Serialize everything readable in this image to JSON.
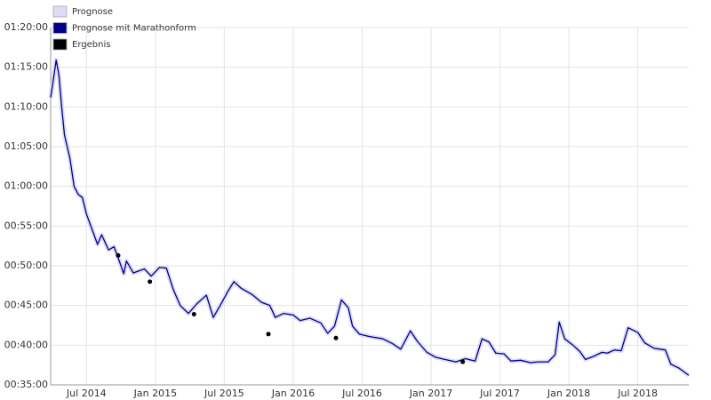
{
  "chart_data": {
    "type": "line",
    "x": [
      2014.24,
      2014.26,
      2014.28,
      2014.3,
      2014.32,
      2014.34,
      2014.38,
      2014.41,
      2014.44,
      2014.47,
      2014.5,
      2014.54,
      2014.58,
      2014.61,
      2014.66,
      2014.7,
      2014.74,
      2014.77,
      2014.79,
      2014.84,
      2014.92,
      2014.97,
      2015.03,
      2015.08,
      2015.13,
      2015.18,
      2015.24,
      2015.3,
      2015.37,
      2015.42,
      2015.47,
      2015.53,
      2015.57,
      2015.62,
      2015.7,
      2015.77,
      2015.83,
      2015.87,
      2015.93,
      2016.0,
      2016.05,
      2016.12,
      2016.2,
      2016.25,
      2016.3,
      2016.35,
      2016.4,
      2016.43,
      2016.48,
      2016.55,
      2016.65,
      2016.72,
      2016.78,
      2016.85,
      2016.9,
      2016.97,
      2017.03,
      2017.1,
      2017.18,
      2017.25,
      2017.32,
      2017.37,
      2017.42,
      2017.47,
      2017.53,
      2017.58,
      2017.65,
      2017.72,
      2017.78,
      2017.85,
      2017.9,
      2017.93,
      2017.97,
      2018.03,
      2018.08,
      2018.12,
      2018.18,
      2018.24,
      2018.28,
      2018.33,
      2018.38,
      2018.43,
      2018.5,
      2018.55,
      2018.62,
      2018.7,
      2018.74,
      2018.8,
      2018.87
    ],
    "series": [
      {
        "name": "Prognose",
        "type": "line",
        "color": "#dcdcf4",
        "values": [
          71.2,
          73.5,
          75.9,
          74.0,
          70.0,
          66.5,
          63.5,
          60.0,
          59.0,
          58.6,
          56.5,
          54.6,
          52.7,
          53.9,
          52.0,
          52.4,
          50.5,
          49.0,
          50.6,
          49.1,
          49.6,
          48.7,
          49.8,
          49.7,
          47.0,
          45.0,
          44.0,
          45.2,
          46.3,
          43.5,
          45.0,
          46.9,
          48.0,
          47.2,
          46.4,
          45.4,
          45.0,
          43.5,
          44.0,
          43.8,
          43.1,
          43.4,
          42.8,
          41.5,
          42.4,
          45.7,
          44.7,
          42.4,
          41.4,
          41.1,
          40.8,
          40.2,
          39.5,
          41.8,
          40.5,
          39.1,
          38.5,
          38.2,
          37.9,
          38.3,
          38.0,
          40.8,
          40.4,
          39.0,
          38.9,
          38.0,
          38.1,
          37.8,
          37.9,
          37.9,
          38.8,
          42.9,
          40.8,
          40.0,
          39.2,
          38.2,
          38.6,
          39.1,
          39.0,
          39.4,
          39.3,
          42.2,
          41.6,
          40.3,
          39.6,
          39.4,
          37.6,
          37.1,
          36.2
        ]
      },
      {
        "name": "Prognose mit Marathonform",
        "type": "line",
        "color": "#00008b",
        "values": [
          71.2,
          73.5,
          75.9,
          74.0,
          70.0,
          66.5,
          63.5,
          60.0,
          59.0,
          58.6,
          56.5,
          54.6,
          52.7,
          53.9,
          52.0,
          52.4,
          50.5,
          49.0,
          50.6,
          49.1,
          49.6,
          48.7,
          49.8,
          49.7,
          47.0,
          45.0,
          44.0,
          45.2,
          46.3,
          43.5,
          45.0,
          46.9,
          48.0,
          47.2,
          46.4,
          45.4,
          45.0,
          43.5,
          44.0,
          43.8,
          43.1,
          43.4,
          42.8,
          41.5,
          42.4,
          45.7,
          44.7,
          42.4,
          41.4,
          41.1,
          40.8,
          40.2,
          39.5,
          41.8,
          40.5,
          39.1,
          38.5,
          38.2,
          37.9,
          38.3,
          38.0,
          40.8,
          40.4,
          39.0,
          38.9,
          38.0,
          38.1,
          37.8,
          37.9,
          37.9,
          38.8,
          42.9,
          40.8,
          40.0,
          39.2,
          38.2,
          38.6,
          39.1,
          39.0,
          39.4,
          39.3,
          42.2,
          41.6,
          40.3,
          39.6,
          39.4,
          37.6,
          37.1,
          36.2
        ]
      },
      {
        "name": "Ergebnis",
        "type": "scatter",
        "color": "#000000",
        "x": [
          2014.73,
          2014.96,
          2015.28,
          2015.82,
          2016.31,
          2017.23
        ],
        "values": [
          51.3,
          48.0,
          43.9,
          41.4,
          40.9,
          37.9
        ]
      }
    ],
    "xlim": [
      2014.24,
      2018.87
    ],
    "xticks": [
      {
        "value": 2014.5,
        "label": "Jul 2014"
      },
      {
        "value": 2015.0,
        "label": "Jan 2015"
      },
      {
        "value": 2015.5,
        "label": "Jul 2015"
      },
      {
        "value": 2016.0,
        "label": "Jan 2016"
      },
      {
        "value": 2016.5,
        "label": "Jul 2016"
      },
      {
        "value": 2017.0,
        "label": "Jan 2017"
      },
      {
        "value": 2017.5,
        "label": "Jul 2017"
      },
      {
        "value": 2018.0,
        "label": "Jan 2018"
      },
      {
        "value": 2018.5,
        "label": "Jul 2018"
      }
    ],
    "ylim": [
      35,
      80
    ],
    "yticks": [
      {
        "value": 35,
        "label": "00:35:00"
      },
      {
        "value": 40,
        "label": "00:40:00"
      },
      {
        "value": 45,
        "label": "00:45:00"
      },
      {
        "value": 50,
        "label": "00:50:00"
      },
      {
        "value": 55,
        "label": "00:55:00"
      },
      {
        "value": 60,
        "label": "01:00:00"
      },
      {
        "value": 65,
        "label": "01:05:00"
      },
      {
        "value": 70,
        "label": "01:10:00"
      },
      {
        "value": 75,
        "label": "01:15:00"
      },
      {
        "value": 80,
        "label": "01:20:00"
      }
    ],
    "grid": true
  }
}
